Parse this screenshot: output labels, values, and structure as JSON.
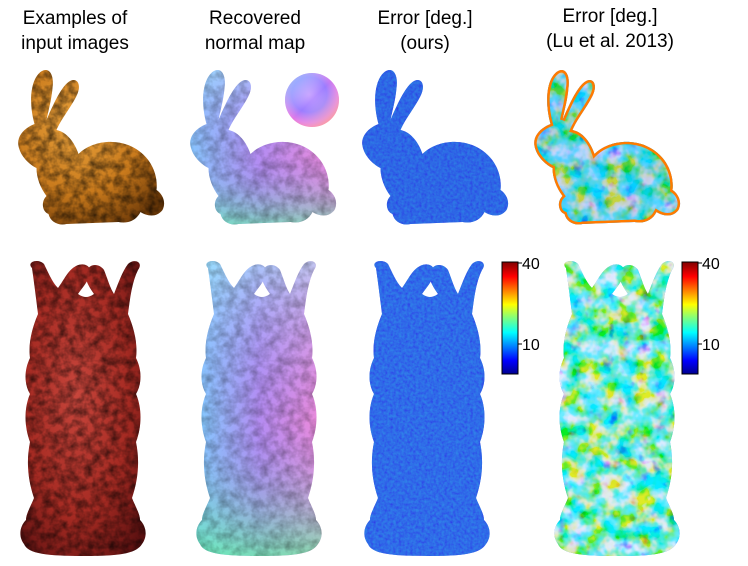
{
  "columns": [
    {
      "line1": "Examples of",
      "line2": "input images"
    },
    {
      "line1": "Recovered",
      "line2": "normal map"
    },
    {
      "line1": "Error [deg.]",
      "line2": "(ours)"
    },
    {
      "line1": "Error [deg.]",
      "line2": "(Lu et al. 2013)"
    }
  ],
  "colorbar": {
    "max_label": "40",
    "mid_label": "10"
  },
  "colors": {
    "input_bunny": "#c97a1c",
    "input_buddha": "#a52a22",
    "error_low": "#1a2fd6",
    "error_high": "#c00000"
  }
}
